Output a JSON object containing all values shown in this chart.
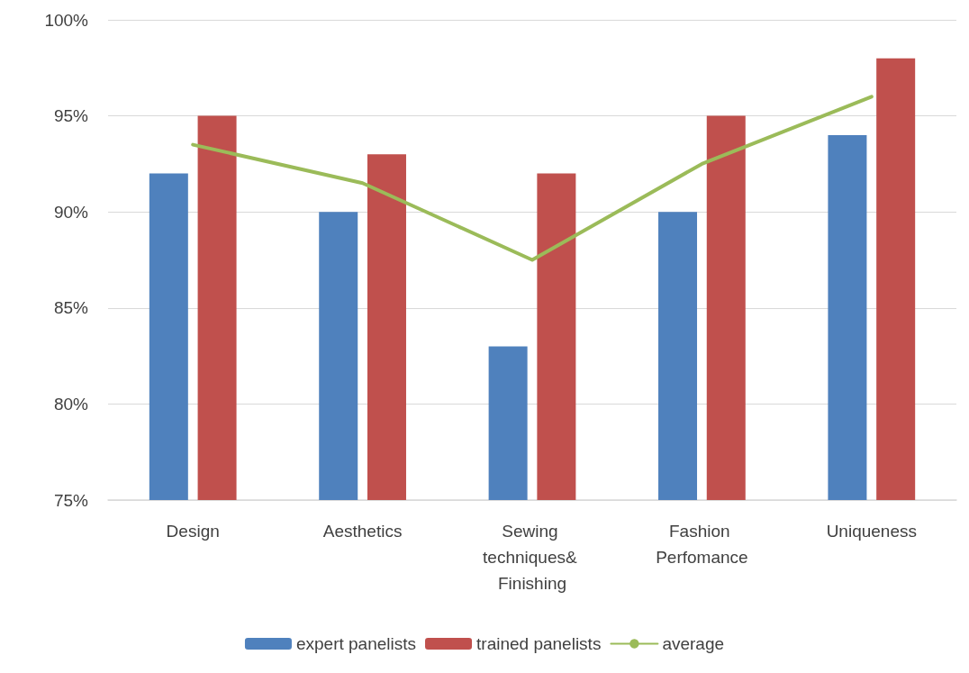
{
  "chart_data": {
    "type": "bar",
    "categories": [
      "Design",
      "Aesthetics",
      "Sewing techniques& Finishing",
      "Fashion Perfomance",
      "Uniqueness"
    ],
    "series": [
      {
        "name": "expert panelists",
        "color": "#4f81bd",
        "values": [
          92,
          90,
          83,
          90,
          94
        ]
      },
      {
        "name": "trained panelists",
        "color": "#c0504d",
        "values": [
          95,
          93,
          92,
          95,
          98
        ]
      },
      {
        "name": "average",
        "type": "line",
        "color": "#9bbb59",
        "values": [
          93.5,
          91.5,
          87.5,
          92.5,
          96
        ]
      }
    ],
    "ylim": [
      75,
      100
    ],
    "yticks": [
      {
        "value": 75,
        "label": "75%"
      },
      {
        "value": 80,
        "label": "80%"
      },
      {
        "value": 85,
        "label": "85%"
      },
      {
        "value": 90,
        "label": "90%"
      },
      {
        "value": 95,
        "label": "95%"
      },
      {
        "value": 100,
        "label": "100%"
      }
    ],
    "grid": "y",
    "legend": "bottom",
    "marker": "none",
    "line_style": "solid"
  }
}
